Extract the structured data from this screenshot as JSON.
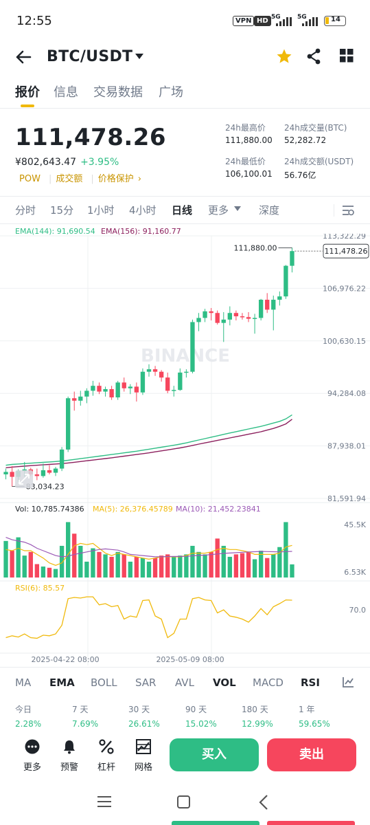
{
  "status_bar": {
    "time": "12:55",
    "vpn": "VPN",
    "hd": "HD",
    "net1": "5G",
    "net2": "5G",
    "battery": "14"
  },
  "header": {
    "pair": "BTC/USDT"
  },
  "tabs": [
    "报价",
    "信息",
    "交易数据",
    "广场"
  ],
  "ticker": {
    "price": "111,478.26",
    "cny": "¥802,643.47",
    "change": "+3.95%",
    "links": [
      "POW",
      "成交额",
      "价格保护"
    ],
    "high_label": "24h最高价",
    "high": "111,880.00",
    "low_label": "24h最低价",
    "low": "106,100.01",
    "vol_btc_label": "24h成交量(BTC)",
    "vol_btc": "52,282.72",
    "vol_usdt_label": "24h成交额(USDT)",
    "vol_usdt": "56.76亿"
  },
  "intervals": [
    "分时",
    "15分",
    "1小时",
    "4小时",
    "日线",
    "更多",
    "深度"
  ],
  "ema": {
    "ema144": "EMA(144): 91,690.54",
    "ema156": "EMA(156): 91,160.77"
  },
  "volume_labels": {
    "vol": "Vol: 10,785.74386",
    "ma5": "MA(5): 26,376.45789",
    "ma10": "MA(10): 21,452.23841"
  },
  "rsi_label": "RSI(6): 85.57",
  "colors": {
    "up": "#2ebd85",
    "down": "#f6465d",
    "accent": "#f0b90b",
    "ema144": "#2ebd85",
    "ema156": "#8b1e5c"
  },
  "chart_data": [
    {
      "type": "candlestick",
      "y_ticks": [
        "113,322.29",
        "106,976.22",
        "100,630.15",
        "94,284.08",
        "87,938.01",
        "81,591.94"
      ],
      "ylim": [
        81591.94,
        113322.29
      ],
      "high_annotation": "111,880.00",
      "low_annotation": "83,034.23",
      "last_price": "111,478.26",
      "x_labels": [
        "2025-04-22 08:00",
        "2025-05-09 08:00"
      ],
      "watermark": "BINANCE",
      "candles": [
        [
          84500,
          85200,
          83900,
          84800
        ],
        [
          84800,
          85500,
          83034.23,
          84200
        ],
        [
          84200,
          85100,
          83600,
          84900
        ],
        [
          84900,
          86000,
          84200,
          85100
        ],
        [
          85100,
          85300,
          84300,
          84500
        ],
        [
          84500,
          85200,
          83800,
          84300
        ],
        [
          84300,
          85800,
          84100,
          85000
        ],
        [
          85000,
          85600,
          84500,
          84700
        ],
        [
          84700,
          85400,
          84300,
          85200
        ],
        [
          85200,
          87800,
          84900,
          87500
        ],
        [
          87500,
          93900,
          87200,
          93700
        ],
        [
          93700,
          94500,
          92200,
          93400
        ],
        [
          93400,
          94600,
          92800,
          93900
        ],
        [
          93900,
          94900,
          93100,
          94600
        ],
        [
          94600,
          95800,
          94000,
          95200
        ],
        [
          95200,
          95600,
          94200,
          94500
        ],
        [
          94500,
          95100,
          93900,
          94800
        ],
        [
          94800,
          95200,
          93500,
          93800
        ],
        [
          93800,
          95800,
          93500,
          95600
        ],
        [
          95600,
          96200,
          94500,
          94900
        ],
        [
          94900,
          95400,
          94200,
          95100
        ],
        [
          95100,
          95600,
          93300,
          94400
        ],
        [
          94400,
          97300,
          94100,
          96900
        ],
        [
          96900,
          97800,
          96300,
          97200
        ],
        [
          97200,
          97600,
          96400,
          96900
        ],
        [
          96900,
          97100,
          95700,
          96200
        ],
        [
          96200,
          96800,
          94300,
          94600
        ],
        [
          94600,
          95200,
          93900,
          94700
        ],
        [
          94700,
          97300,
          94600,
          96800
        ],
        [
          96800,
          97200,
          96200,
          96900
        ],
        [
          96900,
          103200,
          96700,
          102900
        ],
        [
          102900,
          104000,
          101800,
          103400
        ],
        [
          103400,
          104500,
          102900,
          104200
        ],
        [
          104200,
          104600,
          103100,
          104000
        ],
        [
          104000,
          104300,
          102600,
          102800
        ],
        [
          102800,
          104100,
          100500,
          103200
        ],
        [
          103200,
          104800,
          102500,
          104000
        ],
        [
          104000,
          104300,
          103100,
          103600
        ],
        [
          103600,
          104000,
          103200,
          103500
        ],
        [
          103500,
          104100,
          102900,
          103300
        ],
        [
          103300,
          103900,
          101500,
          103400
        ],
        [
          103400,
          105700,
          103100,
          105600
        ],
        [
          105600,
          106400,
          104000,
          104400
        ],
        [
          104400,
          106100,
          101900,
          105600
        ],
        [
          105600,
          106600,
          104900,
          106000
        ],
        [
          106000,
          109800,
          105700,
          109700
        ],
        [
          109700,
          111880,
          108900,
          111478.26
        ]
      ],
      "ema144": [
        85600,
        85700,
        85750,
        85800,
        85850,
        85900,
        85950,
        86000,
        86050,
        86120,
        86200,
        86300,
        86400,
        86500,
        86600,
        86700,
        86800,
        86900,
        87000,
        87100,
        87200,
        87300,
        87420,
        87540,
        87660,
        87780,
        87900,
        88020,
        88150,
        88300,
        88480,
        88650,
        88820,
        88990,
        89160,
        89330,
        89500,
        89660,
        89820,
        89980,
        90140,
        90300,
        90500,
        90700,
        90900,
        91200,
        91690.54
      ],
      "ema156": [
        85300,
        85380,
        85440,
        85500,
        85550,
        85600,
        85650,
        85700,
        85750,
        85800,
        85880,
        85960,
        86050,
        86140,
        86230,
        86320,
        86410,
        86500,
        86600,
        86700,
        86800,
        86900,
        87000,
        87100,
        87220,
        87340,
        87460,
        87580,
        87700,
        87840,
        88000,
        88150,
        88300,
        88450,
        88600,
        88750,
        88900,
        89050,
        89200,
        89350,
        89500,
        89650,
        89850,
        90050,
        90300,
        90600,
        91160.77
      ]
    },
    {
      "type": "bar",
      "series": "volume",
      "y_ticks": [
        "45.5K",
        "6.53K"
      ],
      "ylim": [
        0,
        48000
      ],
      "values": [
        30000,
        22000,
        33000,
        18000,
        21000,
        11000,
        9000,
        8000,
        7000,
        26000,
        45500,
        36000,
        26000,
        13000,
        24000,
        21000,
        19000,
        17000,
        21000,
        19000,
        13000,
        17000,
        16000,
        13000,
        16000,
        18000,
        19000,
        17000,
        18000,
        19000,
        26000,
        21000,
        19000,
        21000,
        32000,
        26000,
        17000,
        19000,
        20000,
        21000,
        15000,
        22000,
        16000,
        19000,
        25000,
        45500,
        10785.74386
      ],
      "ma5": [
        23000,
        22000,
        24000,
        22000,
        22000,
        19000,
        16000,
        12000,
        10000,
        12000,
        19000,
        26000,
        28000,
        27000,
        28000,
        24000,
        20000,
        18000,
        20000,
        19000,
        18000,
        17000,
        16000,
        15000,
        16000,
        17000,
        17000,
        17000,
        17000,
        18000,
        20000,
        20000,
        20000,
        21000,
        23000,
        24000,
        23000,
        23000,
        22000,
        21000,
        19000,
        19000,
        19000,
        19000,
        20000,
        25000,
        26376.45789
      ],
      "ma10": [
        33000,
        31000,
        30000,
        29000,
        27000,
        24000,
        22000,
        20000,
        18000,
        17000,
        17500,
        19000,
        20000,
        21000,
        22000,
        23000,
        23500,
        23000,
        22500,
        21000,
        19000,
        18500,
        18000,
        17500,
        17000,
        17000,
        17200,
        17300,
        17300,
        17400,
        17800,
        18100,
        18400,
        18800,
        19300,
        19800,
        20100,
        20400,
        20700,
        21000,
        21200,
        21400,
        21300,
        21200,
        21000,
        21300,
        21452.23841
      ]
    },
    {
      "type": "line",
      "series": "RSI(6)",
      "y_ticks": [
        "70.0"
      ],
      "ylim": [
        0,
        100
      ],
      "values": [
        25,
        28,
        26,
        31,
        25,
        24,
        29,
        28,
        31,
        45,
        88,
        90,
        89,
        91,
        91,
        78,
        80,
        75,
        77,
        55,
        60,
        58,
        85,
        86,
        60,
        55,
        25,
        32,
        55,
        55,
        88,
        90,
        86,
        85,
        65,
        70,
        60,
        58,
        55,
        50,
        60,
        72,
        62,
        75,
        80,
        86,
        85.57
      ]
    }
  ],
  "indicators": [
    "MA",
    "EMA",
    "BOLL",
    "SAR",
    "AVL",
    "VOL",
    "MACD",
    "RSI"
  ],
  "performance": [
    {
      "label": "今日",
      "value": "2.28%"
    },
    {
      "label": "7 天",
      "value": "7.69%"
    },
    {
      "label": "30 天",
      "value": "26.61%"
    },
    {
      "label": "90 天",
      "value": "15.02%"
    },
    {
      "label": "180 天",
      "value": "12.99%"
    },
    {
      "label": "1 年",
      "value": "59.65%"
    }
  ],
  "toolbar": [
    {
      "label": "更多",
      "icon": "more-dots-icon"
    },
    {
      "label": "预警",
      "icon": "bell-icon"
    },
    {
      "label": "杠杆",
      "icon": "percent-icon"
    },
    {
      "label": "网格",
      "icon": "grid-chart-icon"
    }
  ],
  "buy_label": "买入",
  "sell_label": "卖出"
}
